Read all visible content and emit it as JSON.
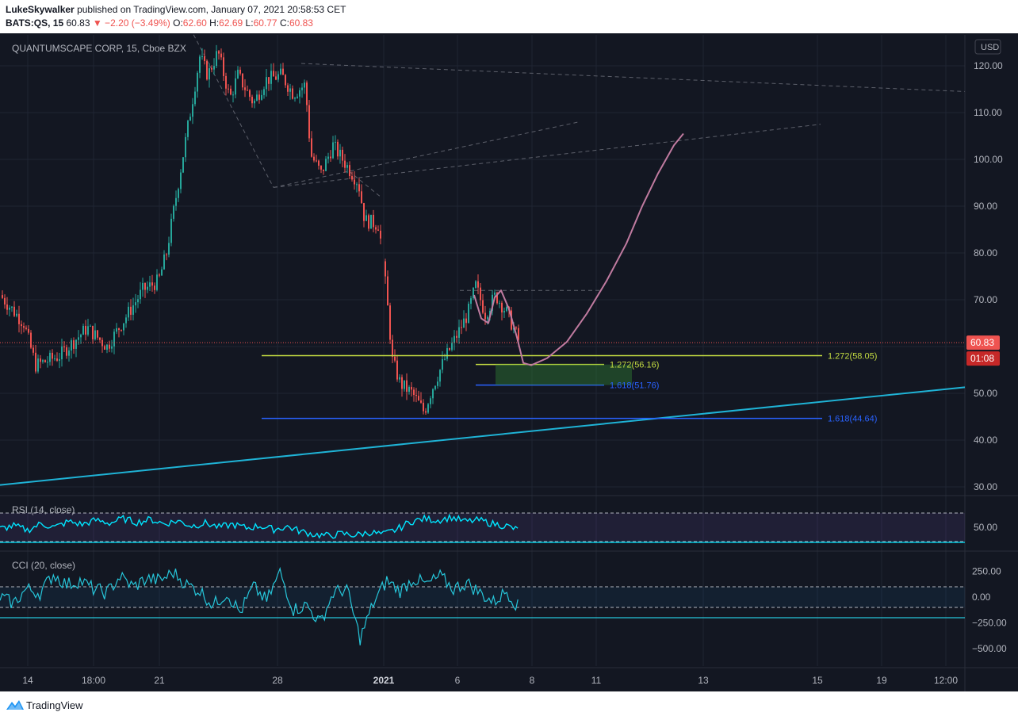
{
  "header": {
    "publisher": "LukeSkywalker",
    "published_text": "published on TradingView.com, January 07, 2021 20:58:53 CET",
    "symbol": "BATS:QS, 15",
    "last": "60.83",
    "change": "▼ −2.20 (−3.49%)",
    "open_label": "O:",
    "open": "62.60",
    "high_label": "H:",
    "high": "62.69",
    "low_label": "L:",
    "low": "60.77",
    "close_label": "C:",
    "close": "60.83"
  },
  "footer": {
    "brand": "TradingView",
    "logo_icon": "tradingview-logo-icon"
  },
  "colors": {
    "background": "#131722",
    "up": "#26a69a",
    "down": "#ef5350",
    "rsi": "#00e5ff",
    "cci": "#26c6da",
    "trend": "#1fb3d6",
    "projection": "#c07ba0",
    "fib_yellow": "#c4dc41",
    "fib_blue": "#2962ff"
  },
  "chart_data": [
    {
      "type": "candlestick",
      "title": "QUANTUMSCAPE CORP, 15, Cboe BZX",
      "currency": "USD",
      "ylim": [
        26,
        125
      ],
      "yticks": [
        30,
        40,
        50,
        60,
        70,
        80,
        90,
        100,
        110,
        120
      ],
      "x_tick_labels": [
        "14",
        "18:00",
        "21",
        "28",
        "2021",
        "6",
        "8",
        "11",
        "13",
        "15",
        "19",
        "12:00"
      ],
      "price_series": [
        [
          0,
          71
        ],
        [
          30,
          65
        ],
        [
          45,
          56
        ],
        [
          75,
          58
        ],
        [
          110,
          64
        ],
        [
          135,
          60
        ],
        [
          150,
          64
        ],
        [
          180,
          72
        ],
        [
          200,
          74
        ],
        [
          210,
          80
        ],
        [
          225,
          95
        ],
        [
          240,
          110
        ],
        [
          252,
          122
        ],
        [
          262,
          118
        ],
        [
          275,
          123
        ],
        [
          290,
          113
        ],
        [
          300,
          118
        ],
        [
          320,
          112
        ],
        [
          335,
          117
        ],
        [
          355,
          118
        ],
        [
          370,
          114
        ],
        [
          385,
          116
        ],
        [
          392,
          101
        ],
        [
          405,
          97
        ],
        [
          420,
          103
        ],
        [
          440,
          98
        ],
        [
          452,
          95
        ],
        [
          460,
          87
        ],
        [
          478,
          86
        ],
        [
          487,
          72
        ],
        [
          495,
          57
        ],
        [
          505,
          52
        ],
        [
          520,
          50
        ],
        [
          535,
          46
        ],
        [
          545,
          51
        ],
        [
          560,
          57
        ],
        [
          575,
          62
        ],
        [
          590,
          67
        ],
        [
          600,
          73
        ],
        [
          612,
          67
        ],
        [
          625,
          71
        ],
        [
          640,
          67
        ],
        [
          655,
          61
        ]
      ],
      "last_price": "60.83",
      "countdown": "01:08",
      "trendline": {
        "from": [
          0,
          30.4
        ],
        "to": [
          1217,
          51.3
        ]
      },
      "fib_levels": [
        {
          "label": "1.272(58.05)",
          "value": 58.05,
          "color": "#c4dc41"
        },
        {
          "label": "1.272(56.16)",
          "value": 56.16,
          "color": "#c4dc41"
        },
        {
          "label": "1.618(51.76)",
          "value": 51.76,
          "color": "#2962ff"
        },
        {
          "label": "1.618(44.64)",
          "value": 44.64,
          "color": "#2962ff"
        }
      ],
      "projection_path": [
        [
          598,
          71
        ],
        [
          607,
          66
        ],
        [
          616,
          65
        ],
        [
          624,
          70.5
        ],
        [
          632,
          72
        ],
        [
          642,
          68
        ],
        [
          652,
          62
        ],
        [
          660,
          56.5
        ],
        [
          670,
          56
        ],
        [
          690,
          57.5
        ],
        [
          715,
          61
        ],
        [
          740,
          67
        ],
        [
          765,
          74
        ],
        [
          790,
          82
        ],
        [
          810,
          90
        ],
        [
          830,
          97
        ],
        [
          850,
          103
        ],
        [
          862,
          105.5
        ]
      ]
    },
    {
      "type": "line",
      "title": "RSI (14, close)",
      "yticks": [
        50
      ],
      "ylim": [
        20,
        80
      ],
      "series": [
        {
          "values": [
            48,
            52,
            46,
            55,
            50,
            58,
            54,
            60,
            56,
            62,
            57,
            61,
            55,
            59,
            52,
            56,
            50,
            54,
            49,
            52,
            47,
            51,
            44,
            40,
            38,
            41,
            39,
            43,
            40,
            47,
            58,
            62,
            60,
            64,
            58,
            60,
            55,
            52,
            45
          ]
        }
      ]
    },
    {
      "type": "line",
      "title": "CCI (20, close)",
      "yticks": [
        "250.00",
        "0.00",
        "−250.00",
        "−500.00"
      ],
      "ylim": [
        -650,
        420
      ],
      "series": [
        {
          "values": [
            0,
            -60,
            80,
            40,
            220,
            120,
            160,
            80,
            40,
            200,
            100,
            180,
            160,
            240,
            120,
            60,
            -80,
            40,
            -150,
            100,
            -40,
            240,
            -120,
            -80,
            -250,
            40,
            80,
            -400,
            -60,
            160,
            60,
            180,
            120,
            200,
            80,
            140,
            40,
            -50,
            60,
            -120
          ]
        }
      ]
    }
  ]
}
